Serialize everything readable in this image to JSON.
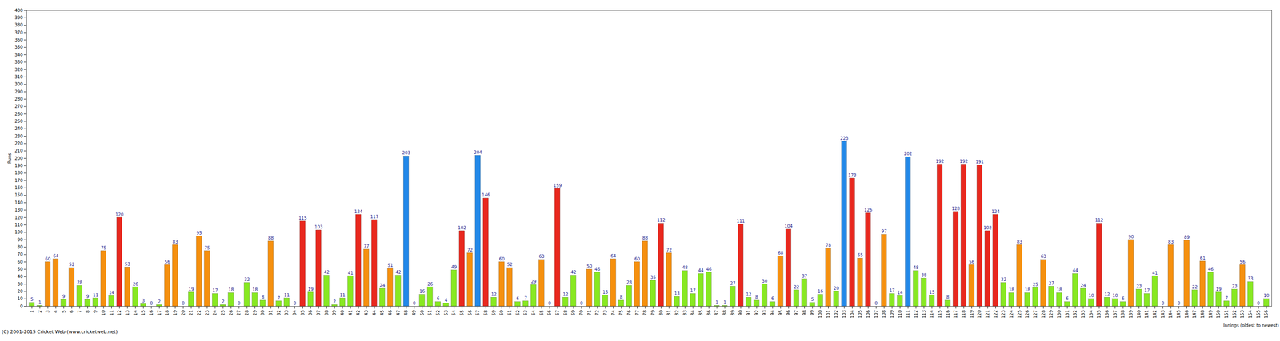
{
  "chart_data": {
    "type": "bar",
    "x_label": "Innings (oldest to newest)",
    "y_label": "Runs",
    "footer": "(C) 2001-2015 Cricket Web (www.cricketweb.net)",
    "categories": [
      "1",
      "2",
      "3",
      "4",
      "5",
      "6",
      "7",
      "8",
      "9",
      "10",
      "11",
      "12",
      "13",
      "14",
      "15",
      "16",
      "17",
      "18",
      "19",
      "20",
      "21",
      "22",
      "23",
      "24",
      "25",
      "26",
      "27",
      "28",
      "29",
      "30",
      "31",
      "32",
      "33",
      "34",
      "35",
      "36",
      "37",
      "38",
      "39",
      "40",
      "41",
      "42",
      "43",
      "44",
      "45",
      "46",
      "47",
      "48",
      "49",
      "50",
      "51",
      "52",
      "53",
      "54",
      "55",
      "56",
      "57",
      "58",
      "59",
      "60",
      "61",
      "62",
      "63",
      "64",
      "65",
      "66",
      "67",
      "68",
      "69",
      "70",
      "71",
      "72",
      "73",
      "74",
      "75",
      "76",
      "77",
      "78",
      "79",
      "80",
      "81",
      "82",
      "83",
      "84",
      "85",
      "86",
      "87",
      "88",
      "89",
      "90",
      "91",
      "92",
      "93",
      "94",
      "95",
      "96",
      "97",
      "98",
      "99",
      "100",
      "101",
      "102",
      "103",
      "104",
      "105",
      "106",
      "107",
      "108",
      "109",
      "110",
      "111",
      "112",
      "113",
      "114",
      "115",
      "116",
      "117",
      "118",
      "119",
      "120",
      "121",
      "122",
      "123",
      "124",
      "125",
      "126",
      "127",
      "128",
      "129",
      "130",
      "131",
      "132",
      "133",
      "134",
      "135",
      "136",
      "137",
      "138",
      "139",
      "140",
      "141",
      "142",
      "143",
      "144",
      "145",
      "146",
      "147",
      "148",
      "149",
      "150",
      "151",
      "152",
      "153",
      "154",
      "155",
      "156"
    ],
    "values": [
      5,
      1,
      60,
      64,
      9,
      52,
      28,
      9,
      11,
      75,
      14,
      120,
      53,
      26,
      3,
      0,
      2,
      56,
      83,
      0,
      19,
      95,
      75,
      17,
      2,
      18,
      0,
      32,
      18,
      8,
      88,
      7,
      11,
      0,
      115,
      19,
      103,
      42,
      2,
      11,
      41,
      124,
      77,
      117,
      24,
      51,
      42,
      203,
      0,
      16,
      26,
      6,
      4,
      49,
      102,
      72,
      204,
      146,
      12,
      60,
      52,
      6,
      7,
      29,
      63,
      0,
      159,
      12,
      42,
      0,
      50,
      46,
      15,
      64,
      8,
      28,
      60,
      88,
      35,
      112,
      72,
      13,
      48,
      17,
      44,
      46,
      1,
      1,
      27,
      111,
      12,
      8,
      30,
      6,
      68,
      104,
      22,
      37,
      5,
      16,
      78,
      20,
      223,
      173,
      65,
      126,
      0,
      97,
      17,
      14,
      202,
      48,
      38,
      15,
      192,
      8,
      128,
      192,
      56,
      191,
      102,
      124,
      32,
      18,
      83,
      18,
      25,
      63,
      27,
      18,
      6,
      44,
      24,
      10,
      112,
      12,
      10,
      6,
      90,
      23,
      17,
      41,
      0,
      83,
      0,
      89,
      22,
      61,
      46,
      19,
      7,
      23,
      56,
      33,
      0,
      10
    ],
    "colors": [
      "#88e822",
      "#88e822",
      "#f5900f",
      "#f5900f",
      "#88e822",
      "#f5900f",
      "#88e822",
      "#88e822",
      "#88e822",
      "#f5900f",
      "#88e822",
      "#e8281e",
      "#f5900f",
      "#88e822",
      "#88e822",
      "#88e822",
      "#88e822",
      "#f5900f",
      "#f5900f",
      "#88e822",
      "#88e822",
      "#f5900f",
      "#f5900f",
      "#88e822",
      "#88e822",
      "#88e822",
      "#88e822",
      "#88e822",
      "#88e822",
      "#88e822",
      "#f5900f",
      "#88e822",
      "#88e822",
      "#88e822",
      "#e8281e",
      "#88e822",
      "#e8281e",
      "#88e822",
      "#88e822",
      "#88e822",
      "#88e822",
      "#e8281e",
      "#f5900f",
      "#e8281e",
      "#88e822",
      "#f5900f",
      "#88e822",
      "#2288e8",
      "#88e822",
      "#88e822",
      "#88e822",
      "#88e822",
      "#88e822",
      "#88e822",
      "#e8281e",
      "#f5900f",
      "#2288e8",
      "#e8281e",
      "#88e822",
      "#f5900f",
      "#f5900f",
      "#88e822",
      "#88e822",
      "#88e822",
      "#f5900f",
      "#88e822",
      "#e8281e",
      "#88e822",
      "#88e822",
      "#88e822",
      "#f5900f",
      "#88e822",
      "#88e822",
      "#f5900f",
      "#88e822",
      "#88e822",
      "#f5900f",
      "#f5900f",
      "#88e822",
      "#e8281e",
      "#f5900f",
      "#88e822",
      "#88e822",
      "#88e822",
      "#88e822",
      "#88e822",
      "#88e822",
      "#88e822",
      "#88e822",
      "#e8281e",
      "#88e822",
      "#88e822",
      "#88e822",
      "#88e822",
      "#f5900f",
      "#e8281e",
      "#88e822",
      "#88e822",
      "#88e822",
      "#88e822",
      "#f5900f",
      "#88e822",
      "#2288e8",
      "#e8281e",
      "#f5900f",
      "#e8281e",
      "#88e822",
      "#f5900f",
      "#88e822",
      "#88e822",
      "#2288e8",
      "#88e822",
      "#88e822",
      "#88e822",
      "#e8281e",
      "#88e822",
      "#e8281e",
      "#e8281e",
      "#f5900f",
      "#e8281e",
      "#e8281e",
      "#e8281e",
      "#88e822",
      "#88e822",
      "#f5900f",
      "#88e822",
      "#88e822",
      "#f5900f",
      "#88e822",
      "#88e822",
      "#88e822",
      "#88e822",
      "#88e822",
      "#88e822",
      "#e8281e",
      "#88e822",
      "#88e822",
      "#88e822",
      "#f5900f",
      "#88e822",
      "#88e822",
      "#88e822",
      "#88e822",
      "#f5900f",
      "#88e822",
      "#f5900f",
      "#88e822",
      "#f5900f",
      "#88e822",
      "#88e822",
      "#88e822",
      "#88e822",
      "#f5900f",
      "#88e822",
      "#88e822",
      "#88e822"
    ],
    "ylim": [
      0,
      400
    ],
    "yticks": [
      0,
      10,
      20,
      30,
      40,
      50,
      60,
      70,
      80,
      90,
      100,
      110,
      120,
      130,
      140,
      150,
      160,
      170,
      180,
      190,
      200,
      210,
      220,
      230,
      240,
      250,
      260,
      270,
      280,
      290,
      300,
      310,
      320,
      330,
      340,
      350,
      360,
      370,
      380,
      390,
      400
    ],
    "grid": false,
    "data_labels": true
  }
}
